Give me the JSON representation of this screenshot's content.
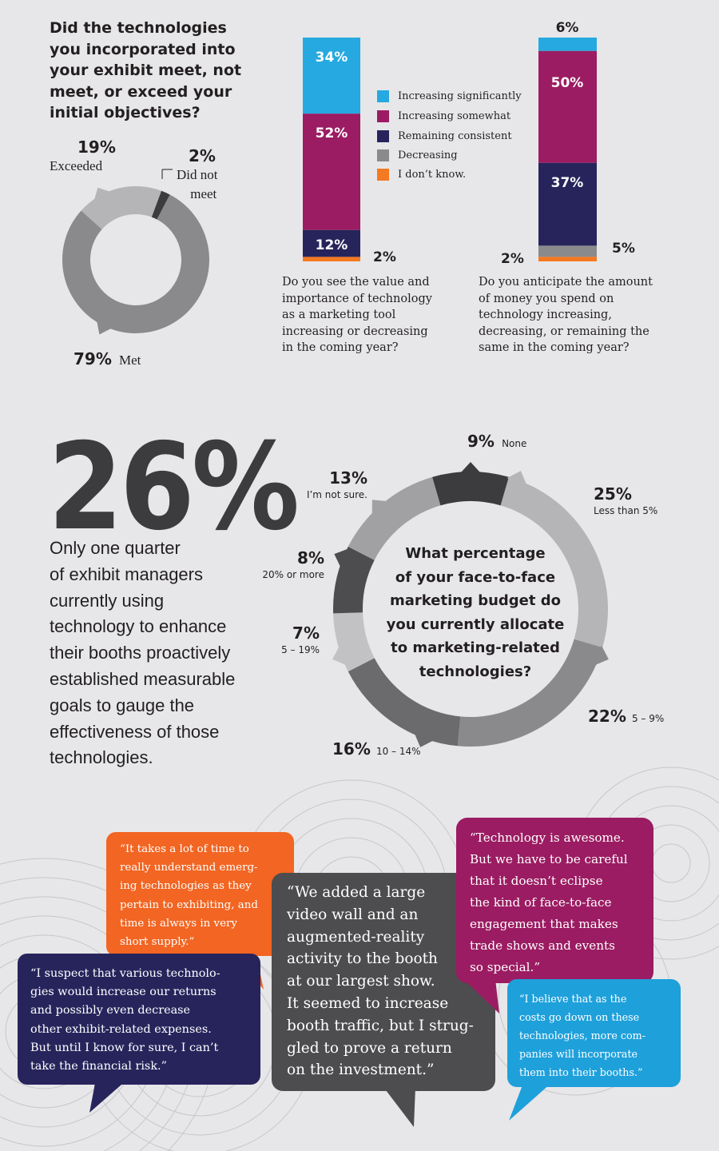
{
  "colors": {
    "background": "#e7e7e9",
    "cyan": "#25a9e0",
    "magenta": "#9b1c62",
    "navy": "#27245c",
    "gray": "#8a8a8c",
    "orange": "#f47920",
    "dark_gray": "#4d4d4f",
    "light_gray": "#b5b5b7"
  },
  "section1": {
    "question": [
      "Did the technologies",
      "you incorporated into",
      "your exhibit meet, not",
      "meet, or exceed your",
      "initial objectives?"
    ],
    "exceeded": {
      "pct": "19%",
      "label": "Exceeded"
    },
    "not_met": {
      "pct": "2%",
      "label_line1": "Did not",
      "label_line2": "meet"
    },
    "met": {
      "pct": "79%",
      "label": "Met"
    }
  },
  "legend": [
    {
      "label": "Increasing significantly",
      "color": "#25a9e0"
    },
    {
      "label": "Increasing somewhat",
      "color": "#9b1c62"
    },
    {
      "label": "Remaining consistent",
      "color": "#27245c"
    },
    {
      "label": "Decreasing",
      "color": "#8a8a8c"
    },
    {
      "label": "I don’t know.",
      "color": "#f47920"
    }
  ],
  "bar1": {
    "caption": [
      "Do you see the value and",
      "importance of technology",
      "as a marketing tool",
      "increasing or decreasing",
      "in the coming year?"
    ],
    "labels": {
      "sig": "34%",
      "some": "52%",
      "cons": "12%",
      "dk": "2%"
    }
  },
  "bar2": {
    "caption": [
      "Do you anticipate the amount",
      "of money you spend on",
      "technology increasing,",
      "decreasing, or remaining the",
      "same in the coming year?"
    ],
    "labels": {
      "sig": "6%",
      "some": "50%",
      "cons": "37%",
      "dec": "5%",
      "dk": "2%"
    }
  },
  "stat": {
    "big": "26%",
    "text": [
      "Only one quarter",
      "of exhibit managers",
      "currently using",
      "technology to enhance",
      "their booths proactively",
      "established measurable",
      "goals to gauge the",
      "effectiveness of those",
      "technologies."
    ]
  },
  "donut2": {
    "question": [
      "What percentage",
      "of your face-to-face",
      "marketing budget do",
      "you currently allocate",
      "to marketing-related",
      "technologies?"
    ],
    "labels": {
      "none": {
        "pct": "9%",
        "text": "None"
      },
      "lt5": {
        "pct": "25%",
        "text": "Less than 5%"
      },
      "r5_9": {
        "pct": "22%",
        "text": "5 – 9%"
      },
      "r10_14": {
        "pct": "16%",
        "text": "10 – 14%"
      },
      "r5_19": {
        "pct": "7%",
        "text": "5 – 19%"
      },
      "r20": {
        "pct": "8%",
        "text": "20% or more"
      },
      "unsure": {
        "pct": "13%",
        "text": "I’m not sure."
      }
    }
  },
  "quotes": {
    "orange": [
      "“It takes a lot of time to",
      "really understand emerg-",
      "ing technologies as they",
      "pertain to exhibiting, and",
      "time is always in very",
      "short supply.”"
    ],
    "navy": [
      "“I suspect that various technolo-",
      "gies would increase our returns",
      "and possibly even decrease",
      "other exhibit-related expenses.",
      "But until I know for sure, I can’t",
      "take the financial risk.”"
    ],
    "gray": [
      "“We added a large",
      "video wall and an",
      "augmented-reality",
      "activity to the booth",
      "at our largest show.",
      "It seemed to increase",
      "booth traffic, but I strug-",
      "gled to prove a return",
      "on the investment.”"
    ],
    "magenta": [
      "“Technology is awesome.",
      "But we have to be careful",
      "that it doesn’t eclipse",
      "the kind of face-to-face",
      "engagement that makes",
      "trade shows and events",
      "so special.”"
    ],
    "cyan": [
      "“I believe that as the",
      "costs go down on these",
      "technologies, more com-",
      "panies will incorporate",
      "them into their booths.”"
    ]
  },
  "chart_data": [
    {
      "type": "pie",
      "title": "Did the technologies you incorporated into your exhibit meet, not meet, or exceed your initial objectives?",
      "categories": [
        "Exceeded",
        "Did not meet",
        "Met"
      ],
      "values": [
        19,
        2,
        79
      ],
      "unit": "%"
    },
    {
      "type": "bar",
      "stacked": true,
      "title": "Do you see the value and importance of technology as a marketing tool increasing or decreasing in the coming year?",
      "series": [
        {
          "name": "Increasing significantly",
          "values": [
            34
          ]
        },
        {
          "name": "Increasing somewhat",
          "values": [
            52
          ]
        },
        {
          "name": "Remaining consistent",
          "values": [
            12
          ]
        },
        {
          "name": "Decreasing",
          "values": [
            0
          ]
        },
        {
          "name": "I don’t know.",
          "values": [
            2
          ]
        }
      ],
      "unit": "%"
    },
    {
      "type": "bar",
      "stacked": true,
      "title": "Do you anticipate the amount of money you spend on technology increasing, decreasing, or remaining the same in the coming year?",
      "series": [
        {
          "name": "Increasing significantly",
          "values": [
            6
          ]
        },
        {
          "name": "Increasing somewhat",
          "values": [
            50
          ]
        },
        {
          "name": "Remaining consistent",
          "values": [
            37
          ]
        },
        {
          "name": "Decreasing",
          "values": [
            5
          ]
        },
        {
          "name": "I don’t know.",
          "values": [
            2
          ]
        }
      ],
      "unit": "%"
    },
    {
      "type": "pie",
      "title": "What percentage of your face-to-face marketing budget do you currently allocate to marketing-related technologies?",
      "categories": [
        "None",
        "Less than 5%",
        "5 – 9%",
        "10 – 14%",
        "5 – 19%",
        "20% or more",
        "I’m not sure."
      ],
      "values": [
        9,
        25,
        22,
        16,
        7,
        8,
        13
      ],
      "unit": "%"
    }
  ]
}
